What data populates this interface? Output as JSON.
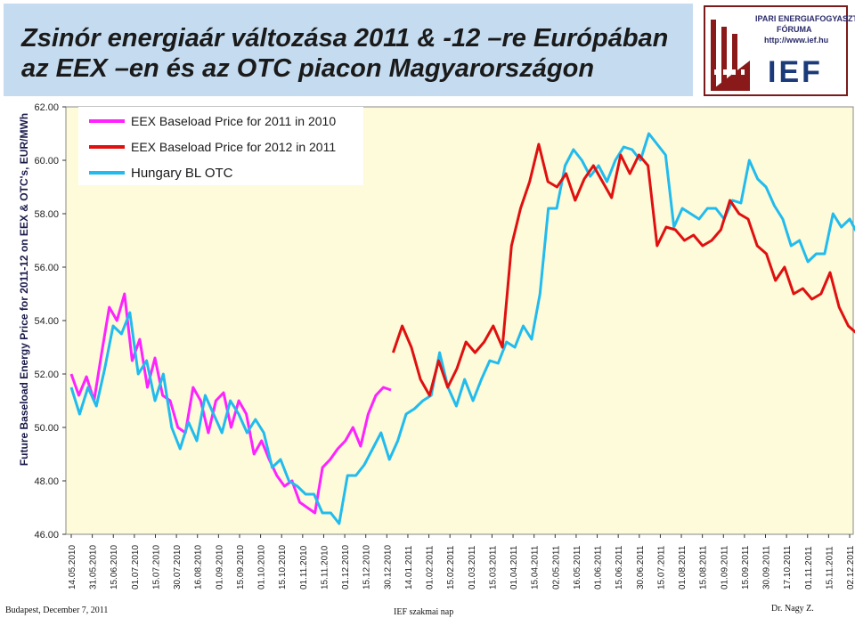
{
  "header": {
    "title_line1": "Zsinór energiaár változása 2011 & -12 –re Európában",
    "title_line2": "az EEX –en és az OTC piacon Magyarországon"
  },
  "logo": {
    "line1": "IPARI ENERGIAFOGYASZTÓK",
    "line2": "FÓRUMA",
    "url": "http://www.ief.hu",
    "brand": "IEF"
  },
  "footer": {
    "left": "Budapest, December 7, 2011",
    "center": "IEF szakmai nap",
    "right": "Dr. Nagy Z."
  },
  "chart_data": {
    "type": "line",
    "ylabel": "Future Baseload Energy Price for 2011-12 on EEX & OTC's, EUR/MWh",
    "xlabel": "",
    "ylim": [
      46,
      62
    ],
    "yticks": [
      "62.00",
      "60.00",
      "58.00",
      "56.00",
      "54.00",
      "52.00",
      "50.00",
      "48.00",
      "46.00"
    ],
    "xtick_labels": [
      "14.05.2010",
      "31.05.2010",
      "15.06.2010",
      "01.07.2010",
      "15.07.2010",
      "30.07.2010",
      "16.08.2010",
      "01.09.2010",
      "15.09.2010",
      "01.10.2010",
      "15.10.2010",
      "01.11.2010",
      "15.11.2010",
      "01.12.2010",
      "15.12.2010",
      "30.12.2010",
      "14.01.2011",
      "01.02.2011",
      "15.02.2011",
      "01.03.2011",
      "15.03.2011",
      "01.04.2011",
      "15.04.2011",
      "02.05.2011",
      "16.05.2011",
      "01.06.2011",
      "15.06.2011",
      "30.06.2011",
      "15.07.2011",
      "01.08.2011",
      "15.08.2011",
      "01.09.2011",
      "15.09.2011",
      "30.09.2011",
      "17.10.2011",
      "01.11.2011",
      "15.11.2011",
      "02.12.2011"
    ],
    "legend_position": "top-left",
    "colors": {
      "plot_bg": "#fdfbd9",
      "eex2011": "#ff22ff",
      "eex2012": "#e01010",
      "otc": "#22bbee"
    },
    "series": [
      {
        "name": "EEX Baseload Price for 2011 in 2010",
        "x_start": 0,
        "x_end": 15.2,
        "values": [
          52.0,
          51.2,
          51.9,
          51.0,
          52.8,
          54.5,
          54.0,
          55.0,
          52.5,
          53.3,
          51.5,
          52.6,
          51.2,
          51.0,
          50.0,
          49.8,
          51.5,
          51.0,
          49.8,
          51.0,
          51.3,
          50.0,
          51.0,
          50.5,
          49.0,
          49.5,
          48.8,
          48.2,
          47.8,
          48.0,
          47.2,
          47.0,
          46.8,
          48.5,
          48.8,
          49.2,
          49.5,
          50.0,
          49.3,
          50.5,
          51.2,
          51.5,
          51.4
        ]
      },
      {
        "name": "EEX Baseload Price for 2012 in 2011",
        "x_start": 15.3,
        "x_end": 37.8,
        "values": [
          52.8,
          53.8,
          53.0,
          51.8,
          51.2,
          52.5,
          51.5,
          52.2,
          53.2,
          52.8,
          53.2,
          53.8,
          53.0,
          56.8,
          58.2,
          59.2,
          60.6,
          59.2,
          59.0,
          59.5,
          58.5,
          59.3,
          59.8,
          59.2,
          58.6,
          60.2,
          59.5,
          60.2,
          59.8,
          56.8,
          57.5,
          57.4,
          57.0,
          57.2,
          56.8,
          57.0,
          57.4,
          58.5,
          58.0,
          57.8,
          56.8,
          56.5,
          55.5,
          56.0,
          55.0,
          55.2,
          54.8,
          55.0,
          55.8,
          54.5,
          53.8,
          53.5,
          52.3
        ]
      },
      {
        "name": "Hungary BL OTC",
        "x_start": 0,
        "x_end": 37.8,
        "values": [
          51.5,
          50.5,
          51.5,
          50.8,
          52.2,
          53.8,
          53.5,
          54.3,
          52.0,
          52.5,
          51.0,
          52.0,
          50.0,
          49.2,
          50.2,
          49.5,
          51.2,
          50.5,
          49.8,
          51.0,
          50.5,
          49.8,
          50.3,
          49.8,
          48.5,
          48.8,
          48.0,
          47.8,
          47.5,
          47.5,
          46.8,
          46.8,
          46.4,
          48.2,
          48.2,
          48.6,
          49.2,
          49.8,
          48.8,
          49.5,
          50.5,
          50.7,
          51.0,
          51.2,
          52.8,
          51.5,
          50.8,
          51.8,
          51.0,
          51.8,
          52.5,
          52.4,
          53.2,
          53.0,
          53.8,
          53.3,
          55.0,
          58.2,
          58.2,
          59.8,
          60.4,
          60.0,
          59.4,
          59.8,
          59.2,
          60.0,
          60.5,
          60.4,
          60.0,
          61.0,
          60.6,
          60.2,
          57.5,
          58.2,
          58.0,
          57.8,
          58.2,
          58.2,
          57.8,
          58.5,
          58.4,
          60.0,
          59.3,
          59.0,
          58.3,
          57.8,
          56.8,
          57.0,
          56.2,
          56.5,
          56.5,
          58.0,
          57.5,
          57.8,
          57.2,
          56.6
        ]
      }
    ]
  }
}
